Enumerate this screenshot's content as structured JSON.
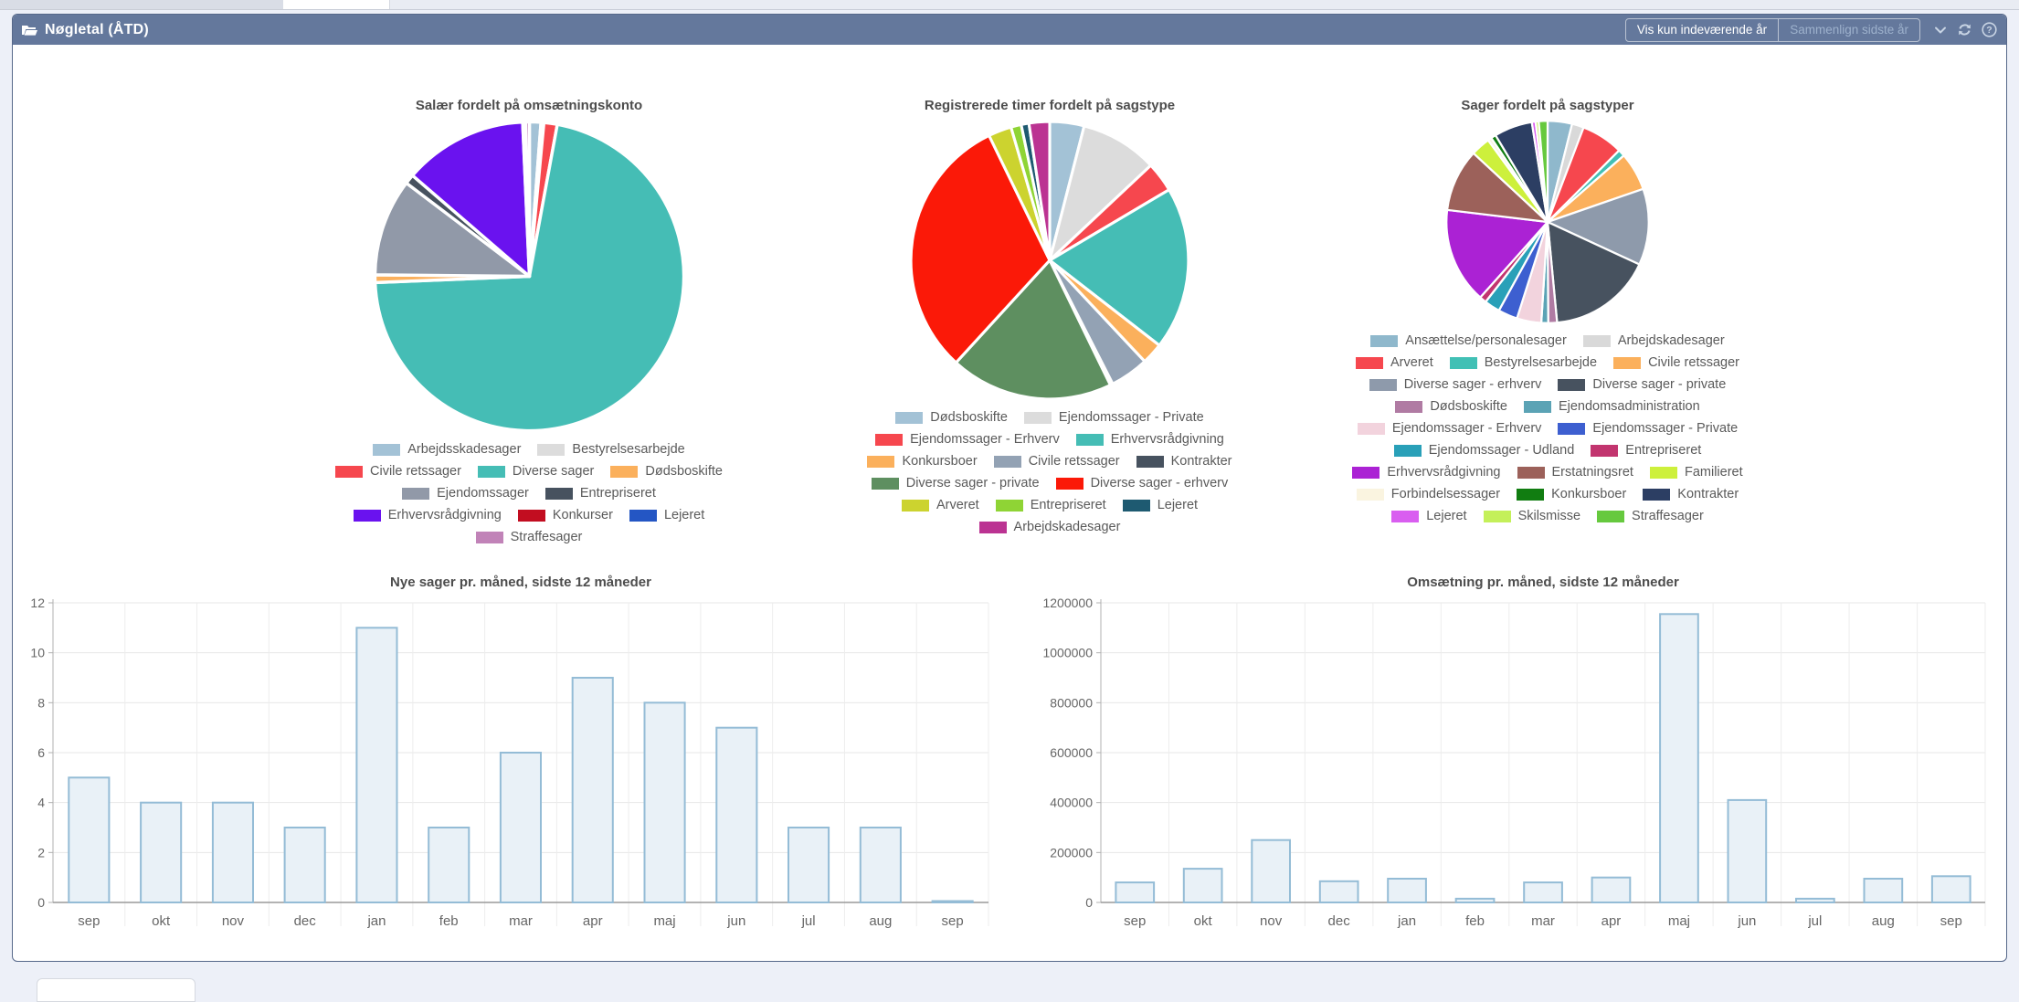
{
  "panel": {
    "title": "Nøgletal (ÅTD)",
    "toolbar": {
      "btn_current_year": "Vis kun indeværende år",
      "btn_compare_last_year": "Sammenlign sidste år"
    }
  },
  "colors": {
    "header_bg": "#64789c",
    "panel_border": "#56688a",
    "page_bg": "#edf0f8",
    "bar_fill": "#e9f1f7",
    "bar_stroke": "#94bcd6"
  },
  "chart_data": [
    {
      "type": "pie",
      "title": "Salær fordelt på omsætningskonto",
      "slices": [
        {
          "label": "Arbejdsskadesager",
          "value": 1.2,
          "color": "#a3c2d6"
        },
        {
          "label": "Bestyrelsesarbejde",
          "value": 0.3,
          "color": "#dcdcdc"
        },
        {
          "label": "Civile retssager",
          "value": 1.4,
          "color": "#f6474e"
        },
        {
          "label": "Diverse sager",
          "value": 71.6,
          "color": "#45bdb5"
        },
        {
          "label": "Dødsboskifte",
          "value": 0.8,
          "color": "#fbb05c"
        },
        {
          "label": "Ejendomssager",
          "value": 10.2,
          "color": "#9199a8"
        },
        {
          "label": "Entrepriseret",
          "value": 1.0,
          "color": "#47525f"
        },
        {
          "label": "Erhvervsrådgivning",
          "value": 13.0,
          "color": "#6a12ef"
        },
        {
          "label": "Konkurser",
          "value": 0.15,
          "color": "#c20d20"
        },
        {
          "label": "Lejeret",
          "value": 0.15,
          "color": "#2456c4"
        },
        {
          "label": "Straffesager",
          "value": 0.4,
          "color": "#c183b8"
        }
      ]
    },
    {
      "type": "pie",
      "title": "Registrerede timer fordelt på sagstype",
      "slices": [
        {
          "label": "Dødsboskifte",
          "value": 4.0,
          "color": "#a3c2d6"
        },
        {
          "label": "Ejendomssager - Private",
          "value": 9.0,
          "color": "#dcdcdc"
        },
        {
          "label": "Ejendomssager - Erhverv",
          "value": 3.5,
          "color": "#f6474e"
        },
        {
          "label": "Erhvervsrådgivning",
          "value": 19.0,
          "color": "#45bdb5"
        },
        {
          "label": "Konkursboer",
          "value": 2.5,
          "color": "#fbb05c"
        },
        {
          "label": "Civile retssager",
          "value": 4.5,
          "color": "#93a2b4"
        },
        {
          "label": "Kontrakter",
          "value": 0.3,
          "color": "#47525f"
        },
        {
          "label": "Diverse sager - private",
          "value": 19.0,
          "color": "#5e8f60"
        },
        {
          "label": "Diverse sager - erhverv",
          "value": 31.0,
          "color": "#fb1908"
        },
        {
          "label": "Arveret",
          "value": 2.7,
          "color": "#ccd32f"
        },
        {
          "label": "Entrepriseret",
          "value": 1.2,
          "color": "#8fd435"
        },
        {
          "label": "Lejeret",
          "value": 0.9,
          "color": "#1e5a71"
        },
        {
          "label": "Arbejdskadesager",
          "value": 2.4,
          "color": "#bb3392"
        }
      ]
    },
    {
      "type": "pie",
      "title": "Sager fordelt på sagstyper",
      "slices": [
        {
          "label": "Ansættelse/personalesager",
          "value": 3.9,
          "color": "#8fb8cc"
        },
        {
          "label": "Arbejdskadesager",
          "value": 1.9,
          "color": "#d9d9d9"
        },
        {
          "label": "Arveret",
          "value": 6.7,
          "color": "#f6474e"
        },
        {
          "label": "Bestyrelsesarbejde",
          "value": 1.1,
          "color": "#41c0b5"
        },
        {
          "label": "Civile retssager",
          "value": 6.1,
          "color": "#fbb05c"
        },
        {
          "label": "Diverse sager - erhverv",
          "value": 12.2,
          "color": "#8e9aab"
        },
        {
          "label": "Diverse sager - private",
          "value": 16.6,
          "color": "#47525f"
        },
        {
          "label": "Dødsboskifte",
          "value": 1.4,
          "color": "#b07ba3"
        },
        {
          "label": "Ejendomsadministration",
          "value": 1.1,
          "color": "#5ba3b5"
        },
        {
          "label": "Ejendomssager - Erhverv",
          "value": 3.9,
          "color": "#f2d3dd"
        },
        {
          "label": "Ejendomssager - Private",
          "value": 3.1,
          "color": "#3d5fd0"
        },
        {
          "label": "Ejendomssager - Udland",
          "value": 2.5,
          "color": "#29a0b8"
        },
        {
          "label": "Entrepriseret",
          "value": 1.1,
          "color": "#c2356f"
        },
        {
          "label": "Erhvervsrådgivning",
          "value": 15.3,
          "color": "#ab22d4"
        },
        {
          "label": "Erstatningsret",
          "value": 10.0,
          "color": "#9c615a"
        },
        {
          "label": "Familieret",
          "value": 3.1,
          "color": "#cdf03c"
        },
        {
          "label": "Forbindelsessager",
          "value": 0.6,
          "color": "#faf4e0"
        },
        {
          "label": "Konkursboer",
          "value": 0.8,
          "color": "#117d11"
        },
        {
          "label": "Kontrakter",
          "value": 6.1,
          "color": "#2c3e63"
        },
        {
          "label": "Lejeret",
          "value": 0.6,
          "color": "#d95ef0"
        },
        {
          "label": "Skilsmisse",
          "value": 0.5,
          "color": "#c4f05a"
        },
        {
          "label": "Straffesager",
          "value": 1.4,
          "color": "#66c93e"
        }
      ]
    },
    {
      "type": "bar",
      "title": "Nye sager pr. måned, sidste 12 måneder",
      "categories": [
        "sep",
        "okt",
        "nov",
        "dec",
        "jan",
        "feb",
        "mar",
        "apr",
        "maj",
        "jun",
        "jul",
        "aug",
        "sep"
      ],
      "values": [
        5,
        4,
        4,
        3,
        11,
        3,
        6,
        9,
        8,
        7,
        3,
        3,
        0
      ],
      "ylim": [
        0,
        12
      ],
      "ytick": 2,
      "grid": true,
      "legend_position": "none"
    },
    {
      "type": "bar",
      "title": "Omsætning  pr. måned, sidste 12 måneder",
      "categories": [
        "sep",
        "okt",
        "nov",
        "dec",
        "jan",
        "feb",
        "mar",
        "apr",
        "maj",
        "jun",
        "jul",
        "aug",
        "sep"
      ],
      "values": [
        80000,
        135000,
        250000,
        85000,
        95000,
        15000,
        80000,
        100000,
        1155000,
        410000,
        15000,
        95000,
        105000
      ],
      "ylim": [
        0,
        1200000
      ],
      "ytick": 200000,
      "grid": true,
      "legend_position": "none"
    }
  ]
}
